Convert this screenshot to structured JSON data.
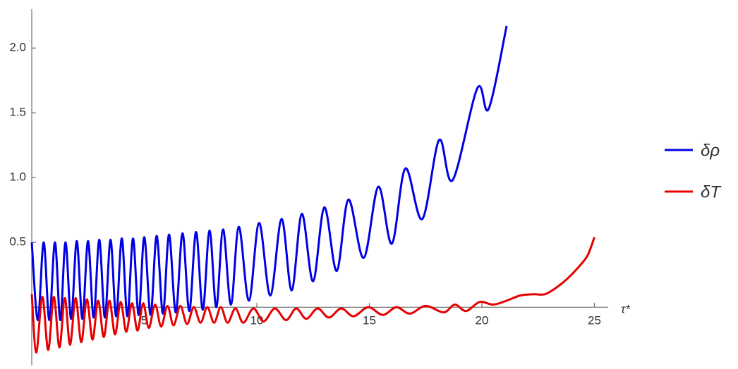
{
  "chart_data": {
    "type": "line",
    "xlabel": "τ*",
    "xlim": [
      0,
      25.6
    ],
    "ylim": [
      -0.45,
      2.3
    ],
    "xticks": [
      5,
      10,
      15,
      20,
      25
    ],
    "yticks": [
      0.5,
      {
        "value": 1.0,
        "label": "1.0"
      },
      1.5,
      {
        "value": 2.0,
        "label": "2.0"
      }
    ],
    "legend": "right",
    "series": [
      {
        "name": "δρ",
        "color": "#0000e6",
        "x": [
          0,
          0.27,
          0.53,
          0.78,
          1.03,
          1.27,
          1.5,
          1.75,
          2.0,
          2.25,
          2.5,
          2.75,
          3.0,
          3.25,
          3.5,
          3.75,
          4.0,
          4.25,
          4.5,
          4.75,
          5.0,
          5.28,
          5.55,
          5.83,
          6.1,
          6.4,
          6.7,
          7.0,
          7.3,
          7.6,
          7.9,
          8.2,
          8.5,
          8.85,
          9.2,
          9.65,
          10.1,
          10.6,
          11.1,
          11.55,
          12.0,
          12.5,
          13.0,
          13.55,
          14.07,
          14.75,
          15.4,
          16.0,
          16.6,
          17.35,
          18.1,
          18.7,
          19.8,
          20.3,
          21.1
        ],
        "values": [
          0.5,
          -0.1,
          0.5,
          -0.1,
          0.5,
          -0.1,
          0.5,
          -0.09,
          0.51,
          -0.09,
          0.51,
          -0.08,
          0.52,
          -0.08,
          0.52,
          -0.07,
          0.53,
          -0.07,
          0.53,
          -0.06,
          0.54,
          -0.06,
          0.55,
          -0.05,
          0.56,
          -0.04,
          0.57,
          -0.03,
          0.58,
          -0.02,
          0.59,
          0.0,
          0.6,
          0.02,
          0.62,
          0.05,
          0.65,
          0.09,
          0.68,
          0.13,
          0.72,
          0.2,
          0.77,
          0.28,
          0.83,
          0.38,
          0.93,
          0.49,
          1.07,
          0.68,
          1.29,
          0.98,
          1.69,
          1.53,
          2.17
        ]
      },
      {
        "name": "δT",
        "color": "#e60000",
        "x": [
          0,
          0.2,
          0.47,
          0.73,
          0.98,
          1.23,
          1.47,
          1.7,
          1.95,
          2.2,
          2.45,
          2.7,
          2.95,
          3.2,
          3.45,
          3.7,
          3.95,
          4.2,
          4.45,
          4.7,
          4.95,
          5.2,
          5.48,
          5.75,
          6.03,
          6.3,
          6.6,
          6.9,
          7.2,
          7.5,
          7.8,
          8.1,
          8.4,
          8.7,
          9.05,
          9.4,
          9.85,
          10.3,
          10.8,
          11.3,
          11.75,
          12.2,
          12.7,
          13.2,
          13.75,
          14.3,
          14.95,
          15.6,
          16.2,
          16.8,
          17.5,
          18.3,
          18.8,
          19.3,
          19.9,
          20.5,
          21.1,
          21.7,
          22.3,
          22.8,
          23.3,
          23.8,
          24.3,
          24.7,
          25
        ],
        "values": [
          0.1,
          -0.35,
          0.08,
          -0.33,
          0.08,
          -0.31,
          0.07,
          -0.29,
          0.07,
          -0.27,
          0.06,
          -0.25,
          0.05,
          -0.23,
          0.05,
          -0.21,
          0.04,
          -0.19,
          0.03,
          -0.18,
          0.03,
          -0.16,
          0.02,
          -0.15,
          0.01,
          -0.14,
          0.01,
          -0.13,
          0.0,
          -0.12,
          0.0,
          -0.12,
          0.0,
          -0.12,
          -0.01,
          -0.12,
          -0.01,
          -0.11,
          -0.01,
          -0.1,
          -0.01,
          -0.09,
          -0.01,
          -0.08,
          -0.01,
          -0.07,
          0.0,
          -0.06,
          0.0,
          -0.05,
          0.01,
          -0.04,
          0.02,
          -0.03,
          0.04,
          0.02,
          0.05,
          0.09,
          0.1,
          0.1,
          0.15,
          0.22,
          0.31,
          0.4,
          0.54
        ]
      }
    ]
  }
}
